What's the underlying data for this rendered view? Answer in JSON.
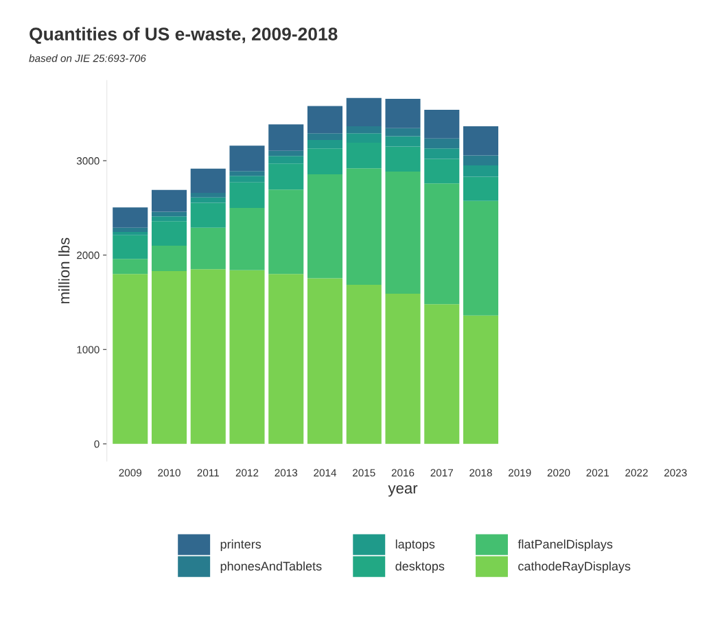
{
  "chart_data": {
    "type": "bar",
    "stacked": true,
    "title": "Quantities of US e-waste, 2009-2018",
    "subtitle": "based on JIE 25:693-706",
    "xlabel": "year",
    "ylabel": "million lbs",
    "categories": [
      "2009",
      "2010",
      "2011",
      "2012",
      "2013",
      "2014",
      "2015",
      "2016",
      "2017",
      "2018",
      "2019",
      "2020",
      "2021",
      "2022",
      "2023"
    ],
    "series": [
      {
        "name": "cathodeRayDisplays",
        "color": "#7ad151",
        "values": [
          1800,
          1830,
          1850,
          1840,
          1800,
          1755,
          1685,
          1590,
          1480,
          1360,
          null,
          null,
          null,
          null,
          null
        ]
      },
      {
        "name": "flatPanelDisplays",
        "color": "#44bf70",
        "values": [
          160,
          270,
          440,
          660,
          895,
          1100,
          1235,
          1295,
          1280,
          1215,
          null,
          null,
          null,
          null,
          null
        ]
      },
      {
        "name": "desktops",
        "color": "#22a884",
        "values": [
          250,
          260,
          265,
          270,
          275,
          275,
          270,
          265,
          260,
          255,
          null,
          null,
          null,
          null,
          null
        ]
      },
      {
        "name": "laptops",
        "color": "#1f9a8a",
        "values": [
          35,
          50,
          55,
          70,
          80,
          90,
          100,
          110,
          110,
          120,
          null,
          null,
          null,
          null,
          null
        ]
      },
      {
        "name": "phonesAndTablets",
        "color": "#287c8e",
        "values": [
          45,
          50,
          50,
          50,
          55,
          70,
          75,
          85,
          105,
          105,
          null,
          null,
          null,
          null,
          null
        ]
      },
      {
        "name": "printers",
        "color": "#31688e",
        "values": [
          215,
          230,
          255,
          270,
          280,
          290,
          300,
          310,
          305,
          310,
          null,
          null,
          null,
          null,
          null
        ]
      }
    ],
    "ylim": [
      -183,
      3850
    ],
    "yticks": [
      0,
      1000,
      2000,
      3000
    ],
    "grid": false,
    "legend": "bottom"
  }
}
